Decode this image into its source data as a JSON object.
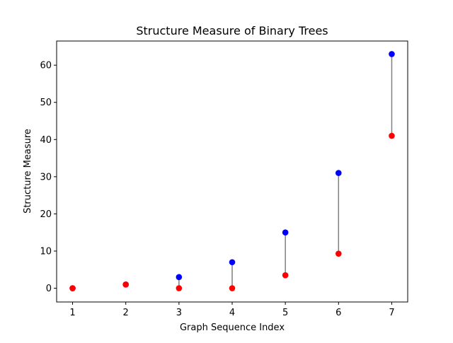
{
  "chart_data": {
    "type": "scatter",
    "title": "Structure Measure of Binary Trees",
    "xlabel": "Graph Sequence Index",
    "ylabel": "Structure Measure",
    "xlim": [
      0.7,
      7.3
    ],
    "ylim": [
      -3.7,
      66.5
    ],
    "x_ticks": [
      1,
      2,
      3,
      4,
      5,
      6,
      7
    ],
    "y_ticks": [
      0,
      10,
      20,
      30,
      40,
      50,
      60
    ],
    "grid": false,
    "connector_color": "#808080",
    "series": [
      {
        "color": "#0000ff",
        "x": [
          1,
          2,
          3,
          4,
          5,
          6,
          7
        ],
        "y": [
          0,
          1,
          3,
          7,
          15,
          31,
          63
        ]
      },
      {
        "color": "#ff0000",
        "x": [
          1,
          2,
          3,
          4,
          5,
          6,
          7
        ],
        "y": [
          0,
          1,
          0,
          0,
          3.5,
          9.3,
          41
        ]
      }
    ]
  }
}
